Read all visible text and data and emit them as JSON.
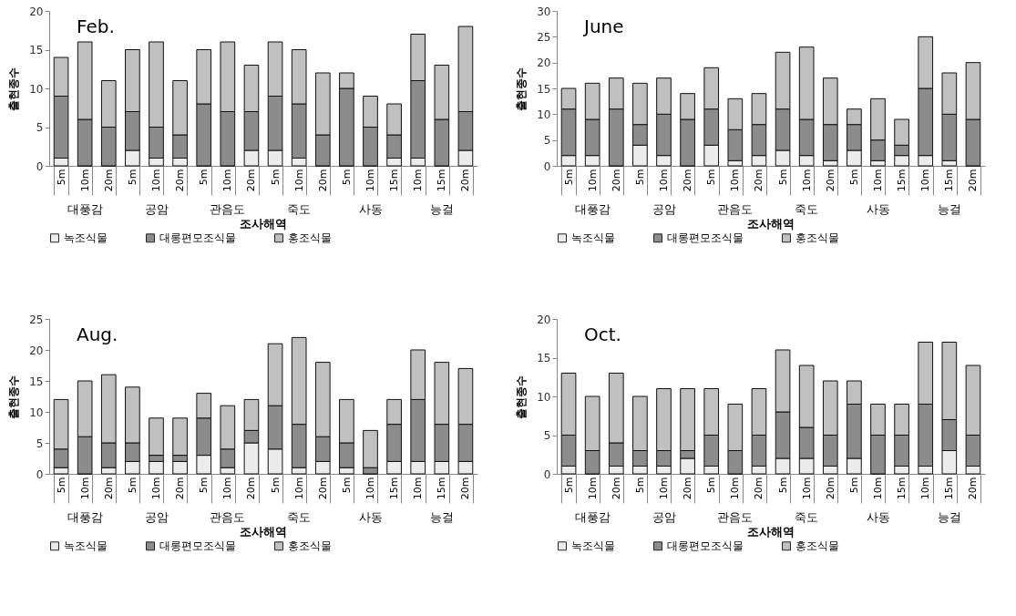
{
  "chart_data": [
    {
      "type": "bar",
      "stacked": true,
      "title": "Feb.",
      "xlabel": "조사해역",
      "ylabel": "출현종수",
      "legend": "bottom",
      "ylim": [
        0,
        20
      ],
      "yticks": [
        0,
        5,
        10,
        15,
        20
      ],
      "categories": [
        "5m",
        "10m",
        "20m",
        "5m",
        "10m",
        "20m",
        "5m",
        "10m",
        "20m",
        "5m",
        "10m",
        "20m",
        "5m",
        "10m",
        "15m",
        "10m",
        "15m",
        "20m"
      ],
      "annotations": [
        "대풍감",
        "공암",
        "관음도",
        "죽도",
        "사동",
        "능걸"
      ],
      "series": [
        {
          "name": "녹조식물",
          "color": "#ececec",
          "values": [
            1,
            0,
            0,
            2,
            1,
            1,
            0,
            0,
            2,
            2,
            1,
            0,
            0,
            0,
            1,
            1,
            0,
            2
          ]
        },
        {
          "name": "대롱편모조식물",
          "color": "#8c8c8c",
          "values": [
            8,
            6,
            5,
            5,
            4,
            3,
            8,
            7,
            5,
            7,
            7,
            4,
            10,
            5,
            3,
            10,
            6,
            5
          ]
        },
        {
          "name": "홍조식물",
          "color": "#c0c0c0",
          "values": [
            5,
            10,
            6,
            8,
            11,
            7,
            7,
            9,
            6,
            7,
            7,
            8,
            2,
            4,
            4,
            6,
            7,
            11
          ]
        }
      ]
    },
    {
      "type": "bar",
      "stacked": true,
      "title": "June",
      "xlabel": "조사해역",
      "ylabel": "출현종수",
      "legend": "bottom",
      "ylim": [
        0,
        30
      ],
      "yticks": [
        0,
        5,
        10,
        15,
        20,
        25,
        30
      ],
      "categories": [
        "5m",
        "10m",
        "20m",
        "5m",
        "10m",
        "20m",
        "5m",
        "10m",
        "20m",
        "5m",
        "10m",
        "20m",
        "5m",
        "10m",
        "15m",
        "10m",
        "15m",
        "20m"
      ],
      "annotations": [
        "대풍감",
        "공암",
        "관음도",
        "죽도",
        "사동",
        "능걸"
      ],
      "series": [
        {
          "name": "녹조식물",
          "color": "#ececec",
          "values": [
            2,
            2,
            0,
            4,
            2,
            0,
            4,
            1,
            2,
            3,
            2,
            1,
            3,
            1,
            2,
            2,
            1,
            0
          ]
        },
        {
          "name": "대롱편모조식물",
          "color": "#8c8c8c",
          "values": [
            9,
            7,
            11,
            4,
            8,
            9,
            7,
            6,
            6,
            8,
            7,
            7,
            5,
            4,
            2,
            13,
            9,
            9
          ]
        },
        {
          "name": "홍조식물",
          "color": "#c0c0c0",
          "values": [
            4,
            7,
            6,
            8,
            7,
            5,
            8,
            6,
            6,
            11,
            14,
            9,
            3,
            8,
            5,
            10,
            8,
            11
          ]
        }
      ]
    },
    {
      "type": "bar",
      "stacked": true,
      "title": "Aug.",
      "xlabel": "조사해역",
      "ylabel": "출현종수",
      "legend": "bottom",
      "ylim": [
        0,
        25
      ],
      "yticks": [
        0,
        5,
        10,
        15,
        20,
        25
      ],
      "categories": [
        "5m",
        "10m",
        "20m",
        "5m",
        "10m",
        "20m",
        "5m",
        "10m",
        "20m",
        "5m",
        "10m",
        "20m",
        "5m",
        "10m",
        "15m",
        "10m",
        "15m",
        "20m"
      ],
      "annotations": [
        "대풍감",
        "공암",
        "관음도",
        "죽도",
        "사동",
        "능걸"
      ],
      "series": [
        {
          "name": "녹조식물",
          "color": "#ececec",
          "values": [
            1,
            0,
            1,
            2,
            2,
            2,
            3,
            1,
            5,
            4,
            1,
            2,
            1,
            0,
            2,
            2,
            2,
            2
          ]
        },
        {
          "name": "대롱편모조식물",
          "color": "#8c8c8c",
          "values": [
            3,
            6,
            4,
            3,
            1,
            1,
            6,
            3,
            2,
            7,
            7,
            4,
            4,
            1,
            6,
            10,
            6,
            6
          ]
        },
        {
          "name": "홍조식물",
          "color": "#c0c0c0",
          "values": [
            8,
            9,
            11,
            9,
            6,
            6,
            4,
            7,
            5,
            10,
            14,
            12,
            7,
            6,
            4,
            8,
            10,
            9
          ]
        }
      ]
    },
    {
      "type": "bar",
      "stacked": true,
      "title": "Oct.",
      "xlabel": "조사해역",
      "ylabel": "출현종수",
      "legend": "bottom",
      "ylim": [
        0,
        20
      ],
      "yticks": [
        0,
        5,
        10,
        15,
        20
      ],
      "categories": [
        "5m",
        "10m",
        "20m",
        "5m",
        "10m",
        "20m",
        "5m",
        "10m",
        "20m",
        "5m",
        "10m",
        "20m",
        "5m",
        "10m",
        "15m",
        "10m",
        "15m",
        "20m"
      ],
      "annotations": [
        "대풍감",
        "공암",
        "관음도",
        "죽도",
        "사동",
        "능걸"
      ],
      "series": [
        {
          "name": "녹조식물",
          "color": "#ececec",
          "values": [
            1,
            0,
            1,
            1,
            1,
            2,
            1,
            0,
            1,
            2,
            2,
            1,
            2,
            0,
            1,
            1,
            3,
            1
          ]
        },
        {
          "name": "대롱편모조식물",
          "color": "#8c8c8c",
          "values": [
            4,
            3,
            3,
            2,
            2,
            1,
            4,
            3,
            4,
            6,
            4,
            4,
            7,
            5,
            4,
            8,
            4,
            4
          ]
        },
        {
          "name": "홍조식물",
          "color": "#c0c0c0",
          "values": [
            8,
            7,
            9,
            7,
            8,
            8,
            6,
            6,
            6,
            8,
            8,
            7,
            3,
            4,
            4,
            8,
            10,
            9
          ]
        }
      ]
    }
  ]
}
